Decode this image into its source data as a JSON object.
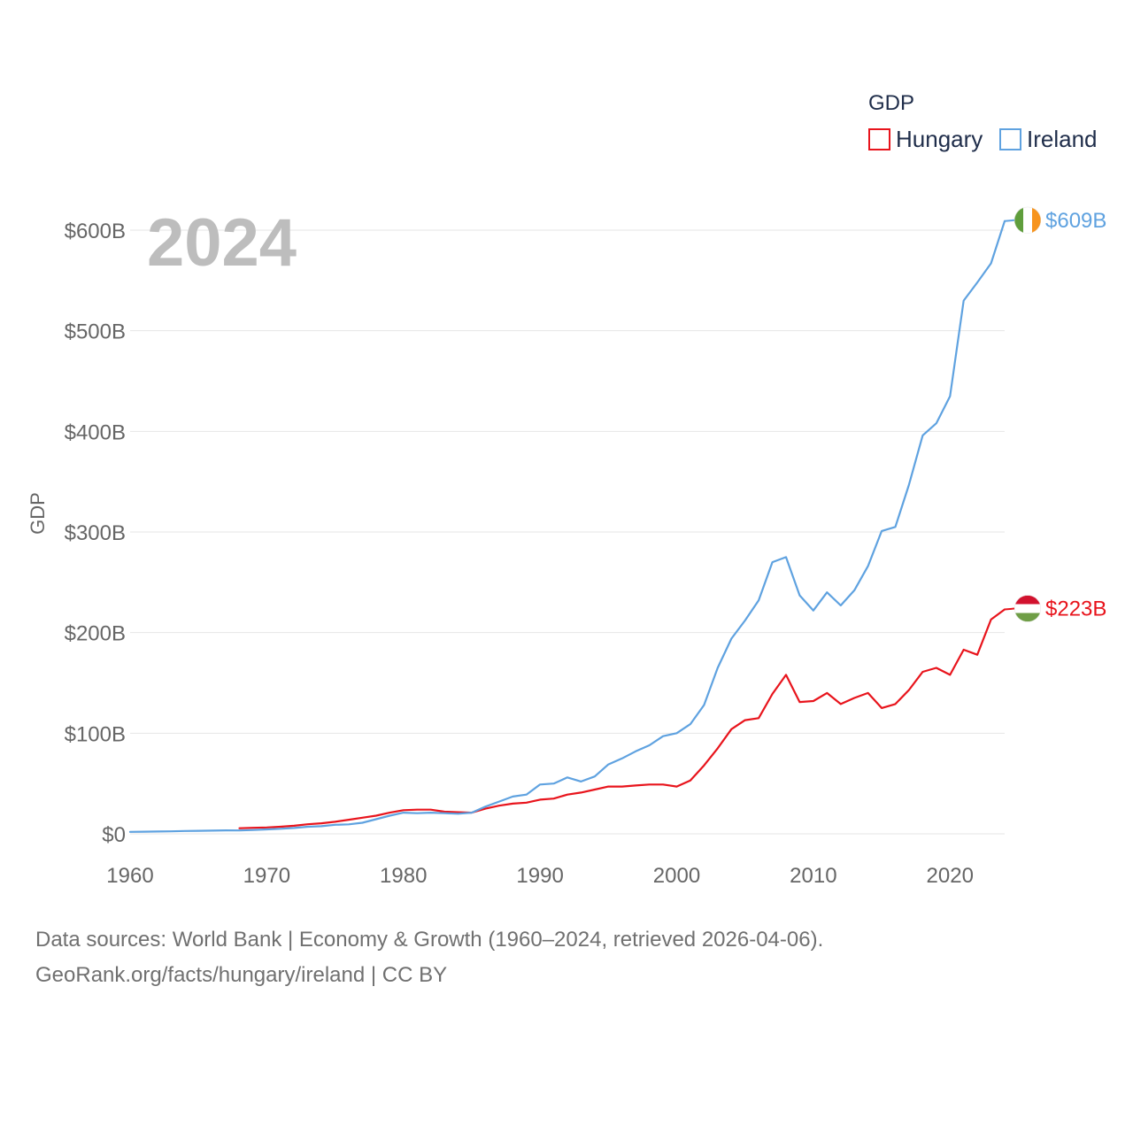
{
  "colors": {
    "hungary": "#e8141c",
    "ireland": "#5fa2e0",
    "grid": "#e6e6e6",
    "axis_text": "#666666",
    "legend_text": "#1f2d4a",
    "year_text": "#bdbdbd"
  },
  "legend": {
    "title": "GDP",
    "items": [
      "Hungary",
      "Ireland"
    ]
  },
  "year_label": "2024",
  "chart_data": {
    "type": "line",
    "title": "",
    "xlabel": "",
    "ylabel": "GDP",
    "xlim": [
      1960,
      2024
    ],
    "ylim": [
      0,
      600
    ],
    "y_unit": "billion USD",
    "xticks": [
      1960,
      1970,
      1980,
      1990,
      2000,
      2010,
      2020
    ],
    "xtick_labels": [
      "1960",
      "1970",
      "1980",
      "1990",
      "2000",
      "2010",
      "2020"
    ],
    "yticks": [
      0,
      100,
      200,
      300,
      400,
      500,
      600
    ],
    "ytick_labels": [
      "$0",
      "$100B",
      "$200B",
      "$300B",
      "$400B",
      "$500B",
      "$600B"
    ],
    "grid": true,
    "legend_position": "top-right",
    "series": [
      {
        "name": "Hungary",
        "end_label": "$223B",
        "x": [
          1968,
          1969,
          1970,
          1971,
          1972,
          1973,
          1974,
          1975,
          1976,
          1977,
          1978,
          1979,
          1980,
          1981,
          1982,
          1983,
          1984,
          1985,
          1986,
          1987,
          1988,
          1989,
          1990,
          1991,
          1992,
          1993,
          1994,
          1995,
          1996,
          1997,
          1998,
          1999,
          2000,
          2001,
          2002,
          2003,
          2004,
          2005,
          2006,
          2007,
          2008,
          2009,
          2010,
          2011,
          2012,
          2013,
          2014,
          2015,
          2016,
          2017,
          2018,
          2019,
          2020,
          2021,
          2022,
          2023,
          2024
        ],
        "values": [
          5.5,
          6,
          6.3,
          7,
          8,
          9.5,
          10.5,
          12,
          14,
          16,
          18,
          21,
          23.5,
          24,
          24,
          22,
          21.5,
          21,
          25,
          28,
          30,
          31,
          34,
          35,
          39,
          41,
          44,
          47,
          47,
          48,
          49,
          49,
          47,
          53,
          68,
          85,
          104,
          113,
          115,
          139,
          158,
          131,
          132,
          140,
          129,
          135,
          140,
          125,
          129,
          143,
          161,
          165,
          158,
          183,
          178,
          213,
          223
        ]
      },
      {
        "name": "Ireland",
        "end_label": "$609B",
        "x": [
          1960,
          1961,
          1962,
          1963,
          1964,
          1965,
          1966,
          1967,
          1968,
          1969,
          1970,
          1971,
          1972,
          1973,
          1974,
          1975,
          1976,
          1977,
          1978,
          1979,
          1980,
          1981,
          1982,
          1983,
          1984,
          1985,
          1986,
          1987,
          1988,
          1989,
          1990,
          1991,
          1992,
          1993,
          1994,
          1995,
          1996,
          1997,
          1998,
          1999,
          2000,
          2001,
          2002,
          2003,
          2004,
          2005,
          2006,
          2007,
          2008,
          2009,
          2010,
          2011,
          2012,
          2013,
          2014,
          2015,
          2016,
          2017,
          2018,
          2019,
          2020,
          2021,
          2022,
          2023,
          2024
        ],
        "values": [
          1.9,
          2.1,
          2.3,
          2.5,
          2.8,
          3,
          3.2,
          3.4,
          3.3,
          3.8,
          4.4,
          5,
          5.8,
          7,
          7.6,
          9,
          9.4,
          11,
          14.5,
          18,
          21,
          20.5,
          21,
          20.5,
          20,
          21,
          27,
          32,
          37,
          39,
          49,
          50,
          56,
          52,
          57,
          69,
          75,
          82,
          88,
          97,
          100,
          109,
          128,
          165,
          194,
          212,
          232,
          270,
          275,
          237,
          222,
          240,
          227,
          242,
          266,
          301,
          305,
          347,
          396,
          408,
          435,
          530,
          548,
          567,
          609
        ]
      }
    ]
  },
  "footer": {
    "line1": "Data sources: World Bank | Economy & Growth (1960–2024, retrieved 2026-04-06).",
    "line2": "GeoRank.org/facts/hungary/ireland | CC BY"
  }
}
